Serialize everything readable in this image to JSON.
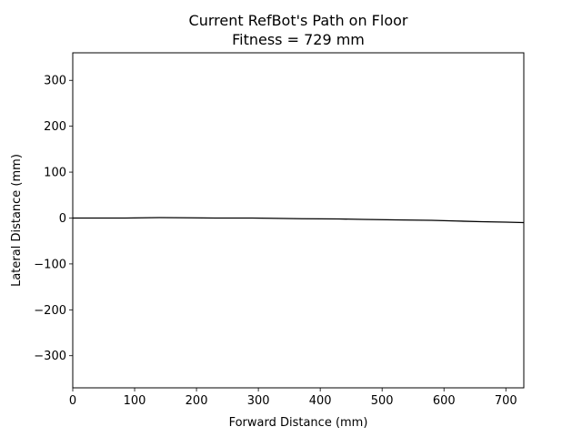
{
  "chart_data": {
    "type": "line",
    "title": "Current RefBot's Path on Floor",
    "subtitle": "Fitness = 729 mm",
    "xlabel": "Forward Distance (mm)",
    "ylabel": "Lateral Distance (mm)",
    "xlim": [
      0,
      729
    ],
    "ylim": [
      -370,
      360
    ],
    "xticks": [
      0,
      100,
      200,
      300,
      400,
      500,
      600,
      700
    ],
    "yticks": [
      -300,
      -200,
      -100,
      0,
      100,
      200,
      300
    ],
    "xtick_labels": [
      "0",
      "100",
      "200",
      "300",
      "400",
      "500",
      "600",
      "700"
    ],
    "ytick_labels": [
      "−300",
      "−200",
      "−100",
      "0",
      "100",
      "200",
      "300"
    ],
    "grid": false,
    "series": [
      {
        "color": "#000000",
        "x": [
          0,
          40,
          85,
          140,
          190,
          230,
          290,
          320,
          370,
          430,
          470,
          520,
          580,
          620,
          660,
          700,
          729
        ],
        "y": [
          0,
          0,
          0,
          1,
          0.5,
          0,
          0,
          -0.5,
          -1.5,
          -2,
          -3,
          -4,
          -5,
          -6.5,
          -8,
          -9,
          -10
        ]
      }
    ]
  }
}
